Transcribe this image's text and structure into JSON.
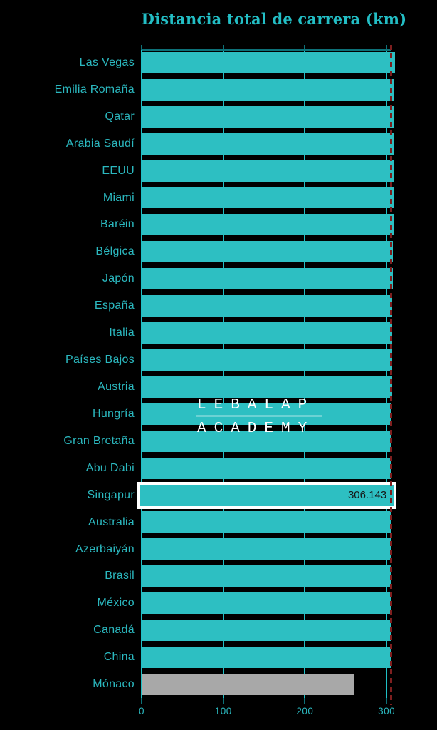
{
  "title": "Distancia total de carrera (km)",
  "watermark": {
    "line1": "LEBALAP",
    "line2": "ACADEMY"
  },
  "chart_data": {
    "type": "bar",
    "orientation": "horizontal",
    "title": "Distancia total de carrera (km)",
    "xlabel": "",
    "ylabel": "",
    "xlim": [
      0,
      323.4
    ],
    "x_ticks": [
      0,
      100,
      200,
      300
    ],
    "grid": true,
    "background": "#000000",
    "bar_color": "#2dbfc2",
    "bar_color_overrides": {
      "Mónaco": "#a8a8a8"
    },
    "gridline_color": "#1fc0c6",
    "axis_color": "#0d7178",
    "text_color": "#2bb8bf",
    "categories": [
      "Las Vegas",
      "Emilia Romaña",
      "Qatar",
      "Arabia Saudí",
      "EEUU",
      "Miami",
      "Baréin",
      "Bélgica",
      "Japón",
      "España",
      "Italia",
      "Países Bajos",
      "Austria",
      "Hungría",
      "Gran Bretaña",
      "Abu Dabi",
      "Singapur",
      "Australia",
      "Azerbaiyán",
      "Brasil",
      "México",
      "Canadá",
      "China",
      "Mónaco"
    ],
    "values": [
      309.958,
      309.049,
      308.611,
      308.45,
      308.405,
      308.326,
      308.238,
      308.052,
      307.471,
      307.236,
      306.72,
      306.587,
      306.452,
      306.3,
      306.198,
      306.183,
      306.143,
      306.124,
      306.049,
      305.879,
      305.354,
      305.27,
      305.066,
      260.286
    ],
    "highlight": {
      "category": "Singapur",
      "value_label": "306.143",
      "border_color": "#ffffff",
      "value_text_color": "#161616"
    },
    "reference_line": {
      "value": 305.1,
      "style": "dashed",
      "color": "#7e1f1f"
    }
  }
}
